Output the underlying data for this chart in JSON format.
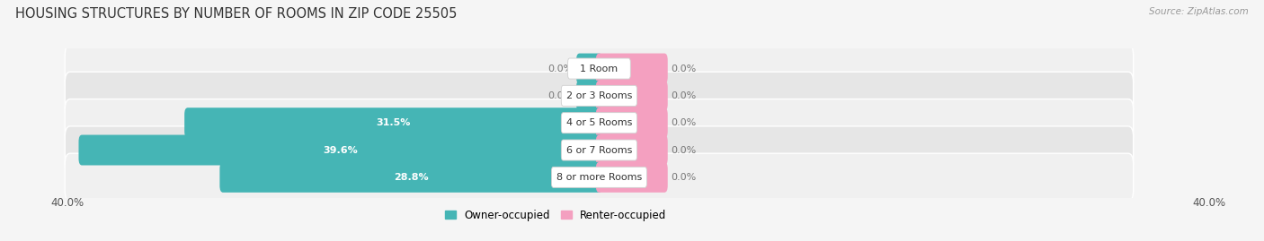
{
  "title": "HOUSING STRUCTURES BY NUMBER OF ROOMS IN ZIP CODE 25505",
  "source": "Source: ZipAtlas.com",
  "categories": [
    "1 Room",
    "2 or 3 Rooms",
    "4 or 5 Rooms",
    "6 or 7 Rooms",
    "8 or more Rooms"
  ],
  "owner_values": [
    0.0,
    0.0,
    31.5,
    39.6,
    28.8
  ],
  "renter_values": [
    0.0,
    0.0,
    0.0,
    0.0,
    0.0
  ],
  "renter_stub": 5.0,
  "x_max": 40.0,
  "owner_color": "#45b5b5",
  "renter_color": "#f4a0c0",
  "row_bg_even": "#f0f0f0",
  "row_bg_odd": "#e6e6e6",
  "label_box_color": "#ffffff",
  "label_box_edge": "#d0d0d0",
  "title_fontsize": 10.5,
  "bar_height": 0.62,
  "background_color": "#f5f5f5",
  "legend_owner": "Owner-occupied",
  "legend_renter": "Renter-occupied",
  "x_tick_label": "40.0%"
}
